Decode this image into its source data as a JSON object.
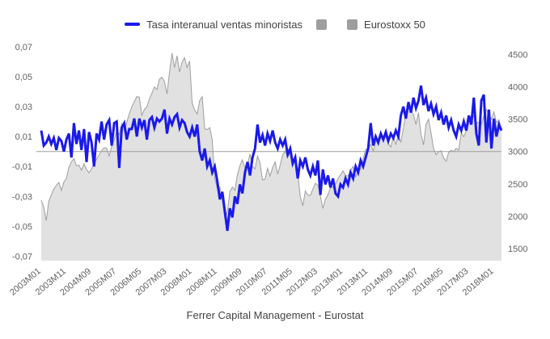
{
  "legend": {
    "items": [
      {
        "label": "Tasa interanual ventas minoristas",
        "swatch": "line",
        "color": "#1a1ae8"
      },
      {
        "label": "",
        "swatch": "square",
        "color": "#9e9e9e"
      },
      {
        "label": "Eurostoxx 50",
        "swatch": "square",
        "color": "#9e9e9e"
      }
    ]
  },
  "footer": {
    "text": "Ferrer Capital Management - Eurostat"
  },
  "colors": {
    "background": "#ffffff",
    "baseline": "#9e9e9e",
    "axis_text": "#616161",
    "legend_text": "#424242",
    "line_series": "#1a1ae8",
    "area_fill": "#e1e1e1",
    "area_stroke": "#9e9e9e"
  },
  "chart_data": {
    "type": "line",
    "title": "",
    "xlabel": "",
    "ylabel_left": "",
    "ylabel_right": "",
    "grid": false,
    "legend_position": "top",
    "x_start": "2003M01",
    "x_end": "2018M04",
    "x_frequency": "monthly",
    "x_tick_month_step": 10,
    "x_tick_labels": [
      "2003M01",
      "2003M11",
      "2004M09",
      "2005M07",
      "2006M05",
      "2007M03",
      "2008M01",
      "2008M11",
      "2009M09",
      "2010M07",
      "2011M05",
      "2012M03",
      "2013M01",
      "2013M11",
      "2014M09",
      "2015M07",
      "2016M05",
      "2017M03",
      "2018M01"
    ],
    "left_axis": {
      "tick_labels": [
        "0,07",
        "0,05",
        "0,03",
        "0,01",
        "-0,01",
        "-0,03",
        "-0,05",
        "-0,07"
      ],
      "tick_values": [
        0.07,
        0.05,
        0.03,
        0.01,
        -0.01,
        -0.03,
        -0.05,
        -0.07
      ],
      "range": [
        -0.07,
        0.07
      ]
    },
    "right_axis": {
      "tick_labels": [
        "4500",
        "4000",
        "3500",
        "3000",
        "2500",
        "2000",
        "1500"
      ],
      "tick_values": [
        4500,
        4000,
        3500,
        3000,
        2500,
        2000,
        1500
      ],
      "range": [
        1500,
        4500
      ]
    },
    "baseline": {
      "left_value": 0,
      "right_value": 3000
    },
    "series": [
      {
        "name": "Tasa interanual ventas minoristas",
        "type": "line",
        "axis": "left",
        "color": "#1a1ae8",
        "values": [
          0.014,
          0.004,
          0.006,
          0.01,
          0.005,
          0.009,
          0.001,
          0.009,
          0.007,
          0.0,
          0.008,
          0.012,
          -0.004,
          0.019,
          0.005,
          0.014,
          0.001,
          0.015,
          -0.007,
          0.013,
          0.006,
          -0.01,
          0.012,
          0.008,
          0.02,
          0.008,
          0.018,
          0.021,
          0.004,
          0.019,
          0.02,
          -0.011,
          0.016,
          0.019,
          0.008,
          0.015,
          0.015,
          0.022,
          0.01,
          0.022,
          0.016,
          0.021,
          0.008,
          0.021,
          0.023,
          0.016,
          0.022,
          0.02,
          0.022,
          0.028,
          0.012,
          0.022,
          0.018,
          0.023,
          0.025,
          0.016,
          0.021,
          0.019,
          0.013,
          0.01,
          0.016,
          0.01,
          0.018,
          0.0,
          -0.006,
          0.002,
          -0.01,
          -0.006,
          -0.014,
          -0.01,
          -0.02,
          -0.032,
          -0.027,
          -0.04,
          -0.053,
          -0.038,
          -0.044,
          -0.03,
          -0.035,
          -0.022,
          -0.028,
          -0.014,
          -0.007,
          -0.016,
          -0.004,
          0.002,
          0.018,
          0.006,
          0.011,
          0.004,
          0.012,
          0.007,
          0.014,
          0.006,
          0.002,
          0.008,
          0.004,
          0.008,
          -0.002,
          0.002,
          -0.008,
          -0.004,
          -0.018,
          -0.006,
          -0.01,
          -0.004,
          -0.012,
          -0.016,
          -0.01,
          -0.016,
          -0.006,
          -0.029,
          -0.012,
          -0.022,
          -0.016,
          -0.024,
          -0.018,
          -0.028,
          -0.03,
          -0.022,
          -0.024,
          -0.018,
          -0.022,
          -0.014,
          -0.018,
          -0.01,
          -0.014,
          -0.006,
          -0.01,
          -0.004,
          0.002,
          0.019,
          0.004,
          0.01,
          0.006,
          0.012,
          0.008,
          0.013,
          0.007,
          0.012,
          0.009,
          0.014,
          0.01,
          0.024,
          0.03,
          0.022,
          0.033,
          0.026,
          0.036,
          0.029,
          0.034,
          0.044,
          0.031,
          0.036,
          0.027,
          0.032,
          0.025,
          0.03,
          0.021,
          0.026,
          0.018,
          0.024,
          0.016,
          0.021,
          0.014,
          0.01,
          0.018,
          0.014,
          0.02,
          0.014,
          0.024,
          0.018,
          0.036,
          0.012,
          0.004,
          0.034,
          0.038,
          0.006,
          0.028,
          0.002,
          0.022,
          0.01,
          0.018,
          0.014
        ]
      },
      {
        "name": "Eurostoxx 50",
        "type": "area",
        "axis": "right",
        "fill": "#e1e1e1",
        "stroke": "#9e9e9e",
        "values": [
          2250,
          2140,
          1930,
          2230,
          2330,
          2420,
          2480,
          2520,
          2400,
          2530,
          2580,
          2760,
          2840,
          2890,
          2780,
          2790,
          2710,
          2810,
          2720,
          2670,
          2730,
          2810,
          2880,
          2950,
          3010,
          3060,
          3050,
          2930,
          3080,
          3180,
          3320,
          3260,
          3430,
          3320,
          3450,
          3580,
          3690,
          3770,
          3850,
          3840,
          3560,
          3650,
          3690,
          3810,
          3900,
          4000,
          3960,
          4120,
          4150,
          4080,
          3890,
          4230,
          4520,
          4300,
          4480,
          4230,
          4380,
          4450,
          4300,
          4400,
          3750,
          3640,
          3580,
          3790,
          3850,
          3350,
          3340,
          3370,
          3180,
          2580,
          2430,
          2450,
          2240,
          1960,
          2070,
          2380,
          2450,
          2400,
          2640,
          2780,
          2870,
          2740,
          2800,
          2960,
          2770,
          2730,
          2930,
          2820,
          2560,
          2570,
          2740,
          2620,
          2750,
          2840,
          2650,
          2790,
          2950,
          3010,
          2910,
          2980,
          2860,
          2850,
          2670,
          2300,
          2160,
          2390,
          2330,
          2320,
          2420,
          2510,
          2480,
          2310,
          2120,
          2260,
          2330,
          2440,
          2450,
          2500,
          2580,
          2640,
          2700,
          2630,
          2620,
          2710,
          2770,
          2600,
          2740,
          2720,
          2890,
          3030,
          3050,
          3110,
          3010,
          3150,
          3160,
          3200,
          3240,
          3230,
          3120,
          3070,
          3230,
          3110,
          3250,
          3150,
          3350,
          3600,
          3700,
          3620,
          3570,
          3420,
          3600,
          3270,
          3100,
          3420,
          3500,
          3290,
          3050,
          2950,
          3000,
          3010,
          2900,
          2850,
          2990,
          3020,
          3000,
          3050,
          3020,
          3290,
          3230,
          3320,
          3440,
          3560,
          3550,
          3440,
          3450,
          3420,
          3550,
          3650,
          3570,
          3500,
          3610,
          3450,
          3490,
          3340
        ]
      }
    ]
  }
}
